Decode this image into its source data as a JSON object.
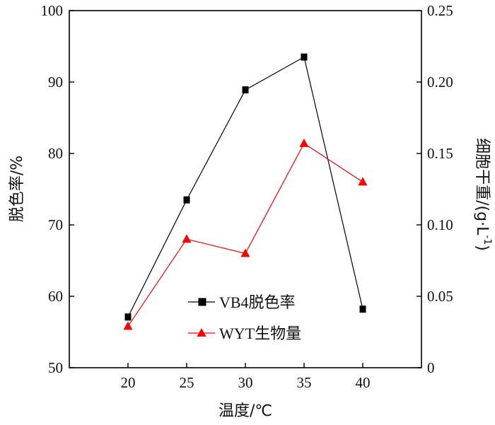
{
  "chart_data": {
    "type": "line",
    "x": [
      20,
      25,
      30,
      35,
      40
    ],
    "xlabel": "温度/℃",
    "xlim": [
      15,
      45
    ],
    "xticks": [
      20,
      25,
      30,
      35,
      40
    ],
    "ylabel": "脱色率/%",
    "ylim": [
      50,
      100
    ],
    "yticks": [
      50,
      60,
      70,
      80,
      90,
      100
    ],
    "y2label": "细胞干重/(g·L",
    "y2label_sup": "-1",
    "y2label_end": ")",
    "y2lim": [
      0,
      0.25
    ],
    "y2ticks": [
      "0",
      "0.05",
      "0.10",
      "0.15",
      "0.20",
      "0.25"
    ],
    "grid": false,
    "legend_position": "lower-center",
    "series": [
      {
        "name": "VB4脱色率",
        "axis": "left",
        "marker": "square",
        "color": "#000000",
        "values": [
          57.1,
          73.5,
          88.9,
          93.5,
          58.2
        ]
      },
      {
        "name": "WYT生物量",
        "axis": "right",
        "marker": "triangle",
        "color": "#ff0000",
        "values": [
          0.029,
          0.09,
          0.08,
          0.157,
          0.13
        ]
      }
    ]
  }
}
